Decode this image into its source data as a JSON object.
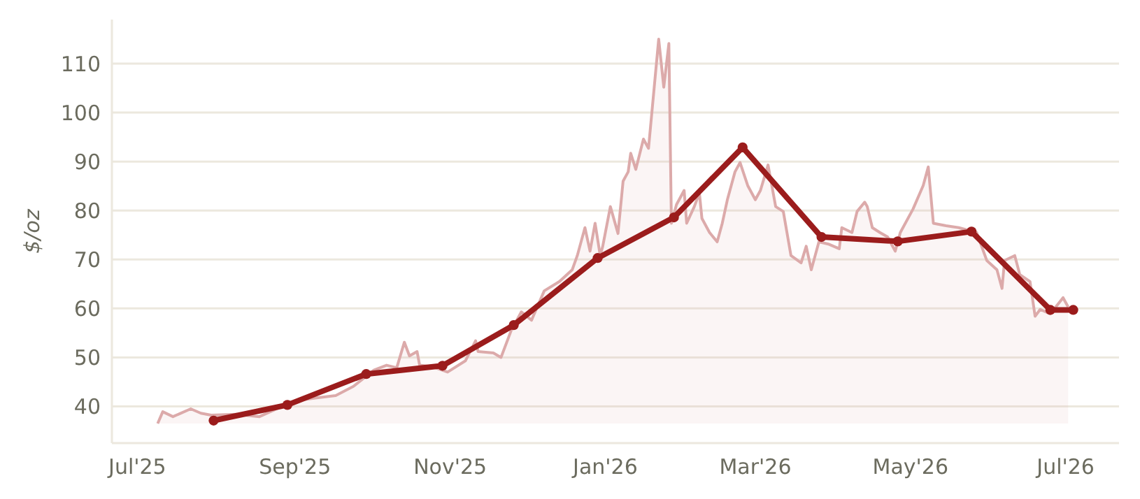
{
  "chart_data": {
    "type": "line",
    "ylabel": "$/oz",
    "xlim": [
      "2025-06-21",
      "2026-07-22"
    ],
    "ylim": [
      32.5,
      119
    ],
    "xticks": [
      {
        "value": "2025-07-01",
        "label": "Jul'25"
      },
      {
        "value": "2025-09-01",
        "label": "Sep'25"
      },
      {
        "value": "2025-11-01",
        "label": "Nov'25"
      },
      {
        "value": "2026-01-01",
        "label": "Jan'26"
      },
      {
        "value": "2026-03-01",
        "label": "Mar'26"
      },
      {
        "value": "2026-05-01",
        "label": "May'26"
      },
      {
        "value": "2026-07-01",
        "label": "Jul'26"
      }
    ],
    "yticks": [
      40,
      50,
      60,
      70,
      80,
      90,
      100,
      110
    ],
    "grid": "y",
    "series": [
      {
        "type": "area",
        "color": "#dcaaaa",
        "marker": "none",
        "x": [
          "2025-07-09",
          "2025-07-11",
          "2025-07-15",
          "2025-07-22",
          "2025-07-26",
          "2025-07-30",
          "2025-08-09",
          "2025-08-18",
          "2025-08-26",
          "2025-09-02",
          "2025-09-09",
          "2025-09-17",
          "2025-09-24",
          "2025-10-02",
          "2025-10-07",
          "2025-10-11",
          "2025-10-14",
          "2025-10-16",
          "2025-10-19",
          "2025-10-20",
          "2025-10-25",
          "2025-10-31",
          "2025-11-07",
          "2025-11-11",
          "2025-11-12",
          "2025-11-18",
          "2025-11-21",
          "2025-11-25",
          "2025-11-29",
          "2025-12-03",
          "2025-12-08",
          "2025-12-14",
          "2025-12-19",
          "2025-12-21",
          "2025-12-24",
          "2025-12-26",
          "2025-12-28",
          "2025-12-30",
          "2025-12-31",
          "2026-01-03",
          "2026-01-06",
          "2026-01-08",
          "2026-01-10",
          "2026-01-11",
          "2026-01-13",
          "2026-01-16",
          "2026-01-18",
          "2026-01-22",
          "2026-01-24",
          "2026-01-26",
          "2026-01-27",
          "2026-01-29",
          "2026-02-01",
          "2026-02-02",
          "2026-02-05",
          "2026-02-07",
          "2026-02-08",
          "2026-02-11",
          "2026-02-14",
          "2026-02-16",
          "2026-02-18",
          "2026-02-21",
          "2026-02-23",
          "2026-02-26",
          "2026-03-01",
          "2026-03-03",
          "2026-03-06",
          "2026-03-09",
          "2026-03-12",
          "2026-03-15",
          "2026-03-19",
          "2026-03-21",
          "2026-03-23",
          "2026-03-26",
          "2026-03-30",
          "2026-04-03",
          "2026-04-04",
          "2026-04-08",
          "2026-04-10",
          "2026-04-13",
          "2026-04-14",
          "2026-04-16",
          "2026-04-19",
          "2026-04-22",
          "2026-04-25",
          "2026-04-27",
          "2026-05-02",
          "2026-05-06",
          "2026-05-08",
          "2026-05-10",
          "2026-05-15",
          "2026-05-20",
          "2026-05-27",
          "2026-05-31",
          "2026-06-04",
          "2026-06-06",
          "2026-06-07",
          "2026-06-11",
          "2026-06-13",
          "2026-06-17",
          "2026-06-19",
          "2026-06-21",
          "2026-06-25",
          "2026-06-30",
          "2026-07-02"
        ],
        "values": [
          36.5,
          38.9,
          37.9,
          39.5,
          38.6,
          38.2,
          38.4,
          37.9,
          39.8,
          41.2,
          41.7,
          42.2,
          44.1,
          47.4,
          48.4,
          47.9,
          53.1,
          50.3,
          51.2,
          48.4,
          48.1,
          47,
          49.3,
          53.4,
          51.2,
          50.9,
          50,
          55.5,
          59.3,
          57.6,
          63.6,
          65.5,
          67.9,
          70.8,
          76.5,
          71.7,
          77.4,
          70.8,
          72.7,
          80.8,
          75.3,
          86,
          87.9,
          91.7,
          88.4,
          94.6,
          92.7,
          115,
          105.2,
          114.1,
          77.4,
          81.2,
          84.1,
          77.4,
          80.8,
          83.6,
          78.4,
          75.5,
          73.6,
          77.4,
          82.2,
          87.9,
          89.8,
          85.1,
          82.2,
          84.1,
          89.3,
          80.8,
          79.8,
          70.8,
          69.3,
          72.7,
          67.9,
          73.6,
          73.1,
          72.2,
          76.5,
          75.5,
          79.8,
          81.7,
          80.8,
          76.5,
          75.5,
          74.6,
          71.7,
          75.5,
          80.3,
          85.1,
          88.9,
          77.4,
          76.9,
          76.5,
          75.5,
          69.8,
          67.9,
          64.1,
          69.8,
          70.8,
          66.9,
          65.5,
          58.4,
          59.8,
          58.9,
          62.2,
          60.3
        ]
      },
      {
        "color": "#9b1c1c",
        "marker": "circle",
        "x": [
          "2025-07-31",
          "2025-08-29",
          "2025-09-29",
          "2025-10-29",
          "2025-11-26",
          "2025-12-29",
          "2026-01-28",
          "2026-02-24",
          "2026-03-27",
          "2026-04-26",
          "2026-05-25",
          "2026-06-25",
          "2026-07-04"
        ],
        "values": [
          37.1,
          40.3,
          46.6,
          48.3,
          56.6,
          70.3,
          78.6,
          92.9,
          74.6,
          73.7,
          75.7,
          59.7,
          59.7
        ]
      }
    ]
  }
}
